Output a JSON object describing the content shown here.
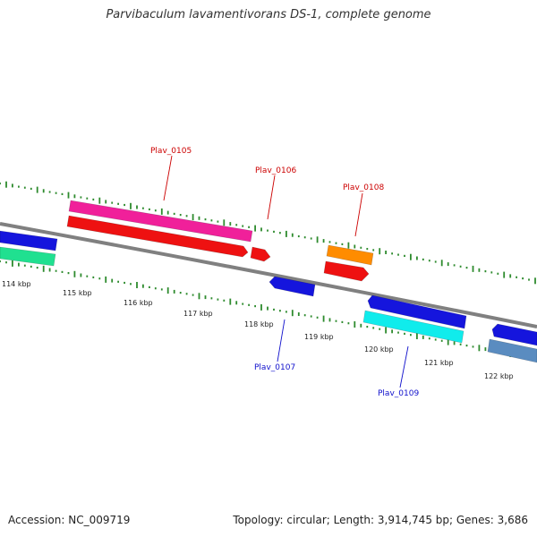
{
  "title": "Parvibaculum lavamentivorans DS-1, complete genome",
  "footer": {
    "accession": "Accession: NC_009719",
    "topology": "Topology: circular; Length: 3,914,745 bp; Genes: 3,686"
  },
  "scale": {
    "ticks": [
      "114 kbp",
      "115 kbp",
      "116 kbp",
      "117 kbp",
      "118 kbp",
      "119 kbp",
      "120 kbp",
      "121 kbp",
      "122 kbp"
    ]
  },
  "gene_labels": [
    {
      "name": "Plav_0105",
      "color": "#cc0000"
    },
    {
      "name": "Plav_0106",
      "color": "#cc0000"
    },
    {
      "name": "Plav_0107",
      "color": "#1010cc"
    },
    {
      "name": "Plav_0108",
      "color": "#cc0000"
    },
    {
      "name": "Plav_0109",
      "color": "#1010cc"
    }
  ],
  "colors": {
    "backbone": "#808080",
    "gc_dots": "#2e8b2e",
    "magenta": "#f0209a",
    "red": "#ee1111",
    "blue": "#1515dd",
    "orange": "#ff8c00",
    "cyan": "#10ecec",
    "green": "#20e090",
    "steel": "#5a8cc0"
  }
}
